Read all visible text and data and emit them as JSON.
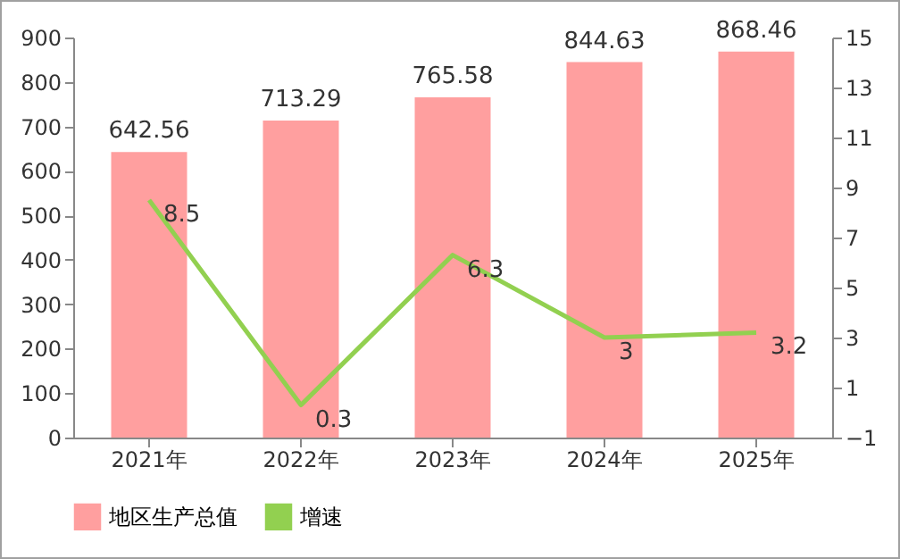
{
  "chart_data": {
    "type": "bar",
    "categories": [
      "2021年",
      "2022年",
      "2023年",
      "2024年",
      "2025年"
    ],
    "series": [
      {
        "name": "地区生产总值",
        "color": "#ff9f9f",
        "values": [
          642.56,
          713.29,
          765.58,
          844.63,
          868.46
        ]
      },
      {
        "name": "增速",
        "type": "line",
        "axis": "y2",
        "color": "#92d050",
        "values": [
          8.5,
          0.3,
          6.3,
          3,
          3.2
        ]
      }
    ],
    "ylim": [
      0,
      900
    ],
    "yticks": [
      0,
      100,
      200,
      300,
      400,
      500,
      600,
      700,
      800,
      900
    ],
    "y2lim": [
      -1,
      15
    ],
    "y2ticks": [
      -1,
      1,
      3,
      5,
      7,
      9,
      11,
      13,
      15
    ],
    "data_labels": true,
    "legend": "bottom",
    "grid": false,
    "marker": "none",
    "line_style": "solid"
  }
}
